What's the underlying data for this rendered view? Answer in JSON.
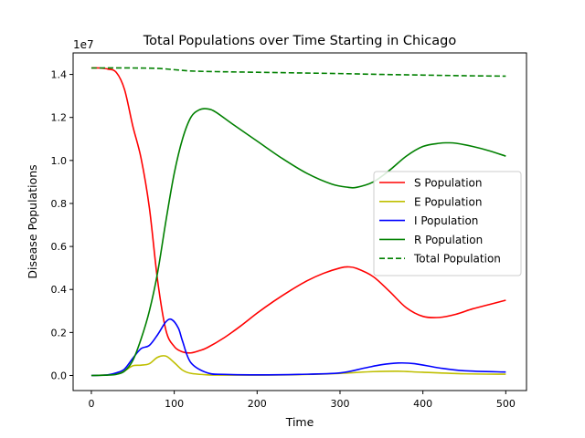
{
  "chart_data": {
    "type": "line",
    "title": "Total Populations over Time Starting in Chicago",
    "xlabel": "Time",
    "ylabel": "Disease Populations",
    "y_offset_label": "1e7",
    "xlim": [
      -22,
      525
    ],
    "ylim": [
      -0.07,
      1.5
    ],
    "y_unit_multiplier": 10000000,
    "x_ticks": [
      0,
      100,
      200,
      300,
      400,
      500
    ],
    "y_ticks": [
      0.0,
      0.2,
      0.4,
      0.6,
      0.8,
      1.0,
      1.2,
      1.4
    ],
    "x_tick_labels": [
      "0",
      "100",
      "200",
      "300",
      "400",
      "500"
    ],
    "y_tick_labels": [
      "0.0",
      "0.2",
      "0.4",
      "0.6",
      "0.8",
      "1.0",
      "1.2",
      "1.4"
    ],
    "grid": false,
    "legend_position": "center-right",
    "series": [
      {
        "name": "S Population",
        "color": "#ff0000",
        "dashed": false,
        "x": [
          0,
          10,
          20,
          30,
          40,
          50,
          60,
          70,
          80,
          90,
          100,
          110,
          120,
          130,
          140,
          160,
          180,
          200,
          220,
          240,
          260,
          280,
          300,
          310,
          320,
          340,
          360,
          380,
          400,
          420,
          440,
          460,
          480,
          500
        ],
        "y": [
          1.43,
          1.43,
          1.425,
          1.41,
          1.33,
          1.16,
          1.01,
          0.78,
          0.44,
          0.21,
          0.135,
          0.11,
          0.105,
          0.115,
          0.13,
          0.175,
          0.23,
          0.29,
          0.345,
          0.395,
          0.44,
          0.475,
          0.5,
          0.505,
          0.498,
          0.46,
          0.39,
          0.315,
          0.275,
          0.27,
          0.285,
          0.31,
          0.33,
          0.35
        ]
      },
      {
        "name": "E Population",
        "color": "#bfbf00",
        "dashed": false,
        "x": [
          0,
          20,
          30,
          40,
          50,
          60,
          70,
          80,
          90,
          100,
          110,
          120,
          140,
          160,
          200,
          250,
          300,
          340,
          370,
          400,
          450,
          500
        ],
        "y": [
          0,
          0.003,
          0.01,
          0.022,
          0.045,
          0.048,
          0.055,
          0.085,
          0.09,
          0.06,
          0.025,
          0.01,
          0.003,
          0.002,
          0.002,
          0.004,
          0.01,
          0.018,
          0.02,
          0.015,
          0.008,
          0.006
        ]
      },
      {
        "name": "I Population",
        "color": "#0000ff",
        "dashed": false,
        "x": [
          0,
          20,
          30,
          40,
          50,
          60,
          70,
          80,
          90,
          97,
          105,
          110,
          120,
          140,
          160,
          200,
          250,
          300,
          330,
          350,
          370,
          390,
          420,
          450,
          500
        ],
        "y": [
          0,
          0.003,
          0.012,
          0.03,
          0.08,
          0.125,
          0.14,
          0.19,
          0.25,
          0.26,
          0.22,
          0.16,
          0.06,
          0.012,
          0.005,
          0.003,
          0.005,
          0.012,
          0.035,
          0.05,
          0.058,
          0.055,
          0.035,
          0.022,
          0.016
        ]
      },
      {
        "name": "R Population",
        "color": "#008000",
        "dashed": false,
        "x": [
          0,
          20,
          30,
          40,
          50,
          60,
          70,
          80,
          90,
          100,
          110,
          120,
          130,
          140,
          150,
          170,
          200,
          230,
          260,
          290,
          310,
          320,
          340,
          360,
          380,
          400,
          420,
          430,
          440,
          460,
          480,
          500
        ],
        "y": [
          0,
          0.002,
          0.005,
          0.02,
          0.07,
          0.17,
          0.3,
          0.48,
          0.72,
          0.94,
          1.1,
          1.2,
          1.235,
          1.24,
          1.225,
          1.17,
          1.09,
          1.01,
          0.94,
          0.89,
          0.875,
          0.875,
          0.9,
          0.955,
          1.02,
          1.065,
          1.08,
          1.082,
          1.08,
          1.065,
          1.045,
          1.02
        ]
      },
      {
        "name": "Total Population",
        "color": "#008000",
        "dashed": true,
        "x": [
          0,
          50,
          80,
          100,
          120,
          150,
          200,
          250,
          300,
          350,
          400,
          450,
          500
        ],
        "y": [
          1.43,
          1.43,
          1.428,
          1.422,
          1.416,
          1.413,
          1.41,
          1.407,
          1.404,
          1.4,
          1.397,
          1.394,
          1.392
        ]
      }
    ]
  }
}
